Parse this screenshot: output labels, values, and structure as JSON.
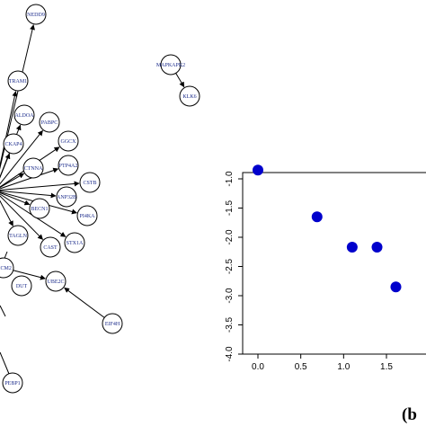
{
  "network": {
    "hub_edges": [
      {
        "label": "NEDD9"
      },
      {
        "label": "TRAM1"
      },
      {
        "label": "ALDOA"
      },
      {
        "label": "PABPC"
      },
      {
        "label": "CKAP4"
      },
      {
        "label": "GGCX"
      },
      {
        "label": "CTNNA"
      },
      {
        "label": "PTP4A2"
      },
      {
        "label": "CSTB"
      },
      {
        "label": "ANP32B"
      },
      {
        "label": "BECN1"
      },
      {
        "label": "PI4KA"
      },
      {
        "label": "TAGLN"
      },
      {
        "label": "CAST"
      },
      {
        "label": "STX1A"
      }
    ],
    "other_nodes": [
      {
        "label": "MAPKAPK2"
      },
      {
        "label": "KLK6"
      },
      {
        "label": "UBE2C"
      },
      {
        "label": "EIF4H"
      },
      {
        "label": "DUT"
      },
      {
        "label": "MCM2"
      },
      {
        "label": "PEBP1"
      }
    ]
  },
  "panel_label": "(b",
  "chart_data": {
    "type": "scatter",
    "title": "",
    "xlabel": "",
    "ylabel": "",
    "xlim": [
      -0.1,
      1.75
    ],
    "ylim": [
      -4.0,
      -0.7
    ],
    "x_ticks": [
      "0.0",
      "0.5",
      "1.0",
      "1.5"
    ],
    "y_ticks": [
      "-1.0",
      "-1.5",
      "-2.0",
      "-2.5",
      "-3.0",
      "-3.5",
      "-4.0"
    ],
    "points": [
      {
        "x": 0.0,
        "y": -0.85
      },
      {
        "x": 0.69,
        "y": -1.65
      },
      {
        "x": 1.1,
        "y": -2.17
      },
      {
        "x": 1.39,
        "y": -2.17
      },
      {
        "x": 1.61,
        "y": -2.85
      }
    ],
    "point_color": "#0000cc",
    "grid": false
  }
}
